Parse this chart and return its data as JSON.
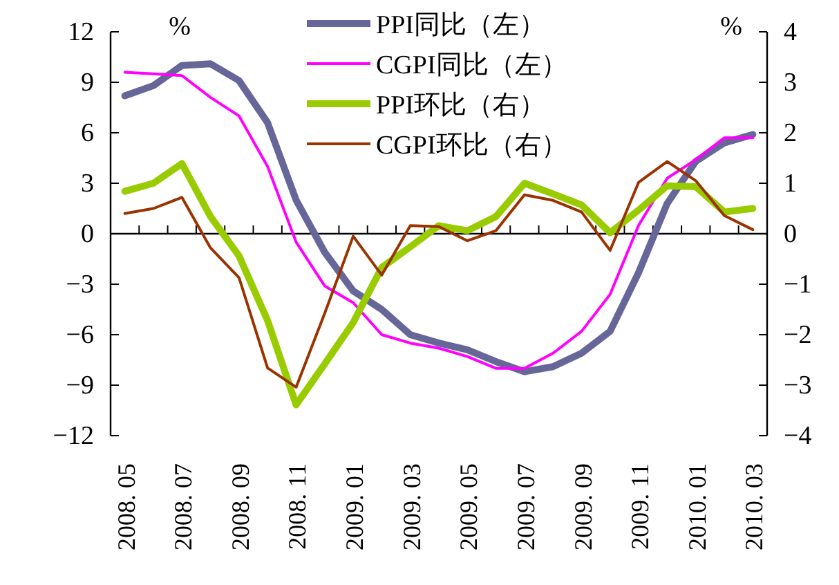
{
  "chart_data": {
    "type": "line",
    "categories": [
      "2008. 05",
      null,
      "2008. 07",
      null,
      "2008. 09",
      null,
      "2008. 11",
      null,
      "2009. 01",
      null,
      "2009. 03",
      null,
      "2009. 05",
      null,
      "2009. 07",
      null,
      "2009. 09",
      null,
      "2009. 11",
      null,
      "2010. 01",
      null,
      "2010. 03"
    ],
    "series": [
      {
        "name": "PPI同比（左）",
        "color": "#666699",
        "values": [
          8.2,
          8.8,
          10.0,
          10.1,
          9.1,
          6.6,
          2.0,
          -1.1,
          -3.4,
          -4.5,
          -6.0,
          -6.5,
          -6.9,
          -7.6,
          -8.2,
          -7.9,
          -7.1,
          -5.8,
          -2.3,
          1.8,
          4.3,
          5.4,
          5.9
        ]
      },
      {
        "name": "CGPI同比（左）",
        "color": "#ff00ff",
        "values": [
          9.6,
          9.5,
          9.4,
          8.1,
          7.0,
          4.0,
          -0.5,
          -3.1,
          -4.1,
          -6.0,
          -6.5,
          -6.8,
          -7.3,
          -8.0,
          -8.0,
          -7.1,
          -5.8,
          -3.6,
          0.5,
          3.3,
          4.4,
          5.7,
          5.7
        ]
      },
      {
        "name": "PPI环比（右）",
        "color": "#99cc00",
        "axis": "y2",
        "values": [
          0.84,
          1.0,
          1.39,
          0.34,
          -0.44,
          -1.72,
          -3.39,
          -2.58,
          -1.76,
          -0.67,
          -0.26,
          0.16,
          0.06,
          0.34,
          1.0,
          0.79,
          0.57,
          0.02,
          0.47,
          0.95,
          0.93,
          0.43,
          0.5
        ]
      },
      {
        "name": "CGPI环比（右）",
        "color": "#993300",
        "axis": "y2",
        "values": [
          0.4,
          0.5,
          0.72,
          -0.28,
          -0.87,
          -2.66,
          -3.04,
          -1.58,
          -0.05,
          -0.82,
          0.16,
          0.14,
          -0.14,
          0.06,
          0.77,
          0.66,
          0.43,
          -0.33,
          1.02,
          1.43,
          1.05,
          0.36,
          0.08
        ]
      }
    ],
    "ylim": [
      -12,
      12
    ],
    "yticks": [
      -12,
      -9,
      -6,
      -3,
      0,
      3,
      6,
      9,
      12
    ],
    "y2lim": [
      -4,
      4
    ],
    "y2ticks": [
      -4,
      -3,
      -2,
      -1,
      0,
      1,
      2,
      3,
      4
    ],
    "ylabel": "%",
    "y2label": "%",
    "ref_lines": [
      {
        "axis": "y",
        "value": 0,
        "color": "#000000"
      }
    ],
    "legend": "top",
    "grid": false
  }
}
